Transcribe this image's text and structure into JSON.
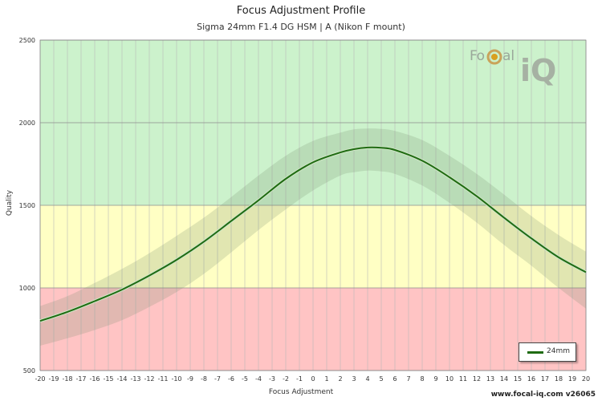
{
  "title": "Focus Adjustment Profile",
  "subtitle": "Sigma 24mm F1.4 DG HSM | A (Nikon F mount)",
  "footer": "www.focal-iq.com  v26065",
  "logo": {
    "part1": "Fo",
    "part2": "al",
    "part3": "iQ"
  },
  "chart_data": {
    "type": "line",
    "xlabel": "Focus Adjustment",
    "ylabel": "Quality",
    "xlim": [
      -20,
      20
    ],
    "ylim": [
      500,
      2500
    ],
    "x_ticks": [
      -20,
      -19,
      -18,
      -17,
      -16,
      -15,
      -14,
      -13,
      -12,
      -11,
      -10,
      -9,
      -8,
      -7,
      -6,
      -5,
      -4,
      -3,
      -2,
      -1,
      0,
      1,
      2,
      3,
      4,
      5,
      6,
      7,
      8,
      9,
      10,
      11,
      12,
      13,
      14,
      15,
      16,
      17,
      18,
      19,
      20
    ],
    "y_ticks": [
      500,
      1000,
      1500,
      2000,
      2500
    ],
    "grid": true,
    "bands": [
      {
        "from": 500,
        "to": 1000,
        "color": "#ffc4c4"
      },
      {
        "from": 1000,
        "to": 1500,
        "color": "#ffffc4"
      },
      {
        "from": 1500,
        "to": 2500,
        "color": "#ccf2cc"
      }
    ],
    "legend_position": "bottom-right",
    "series": [
      {
        "name": "24mm",
        "color": "#1f6b12",
        "x": [
          -20,
          -18,
          -16,
          -14,
          -12,
          -10,
          -8,
          -6,
          -4,
          -2,
          0,
          2,
          3,
          4,
          5,
          6,
          8,
          10,
          12,
          14,
          16,
          18,
          20
        ],
        "y": [
          800,
          855,
          920,
          990,
          1075,
          1170,
          1280,
          1405,
          1530,
          1660,
          1760,
          1820,
          1840,
          1850,
          1848,
          1835,
          1770,
          1670,
          1555,
          1425,
          1300,
          1185,
          1095
        ],
        "band_upper": [
          890,
          950,
          1030,
          1115,
          1210,
          1315,
          1425,
          1550,
          1680,
          1800,
          1890,
          1940,
          1960,
          1965,
          1962,
          1950,
          1895,
          1800,
          1690,
          1565,
          1435,
          1320,
          1220
        ],
        "band_lower": [
          650,
          695,
          745,
          805,
          885,
          975,
          1085,
          1215,
          1350,
          1475,
          1590,
          1680,
          1700,
          1710,
          1705,
          1690,
          1620,
          1515,
          1395,
          1260,
          1135,
          1000,
          875
        ]
      }
    ]
  }
}
